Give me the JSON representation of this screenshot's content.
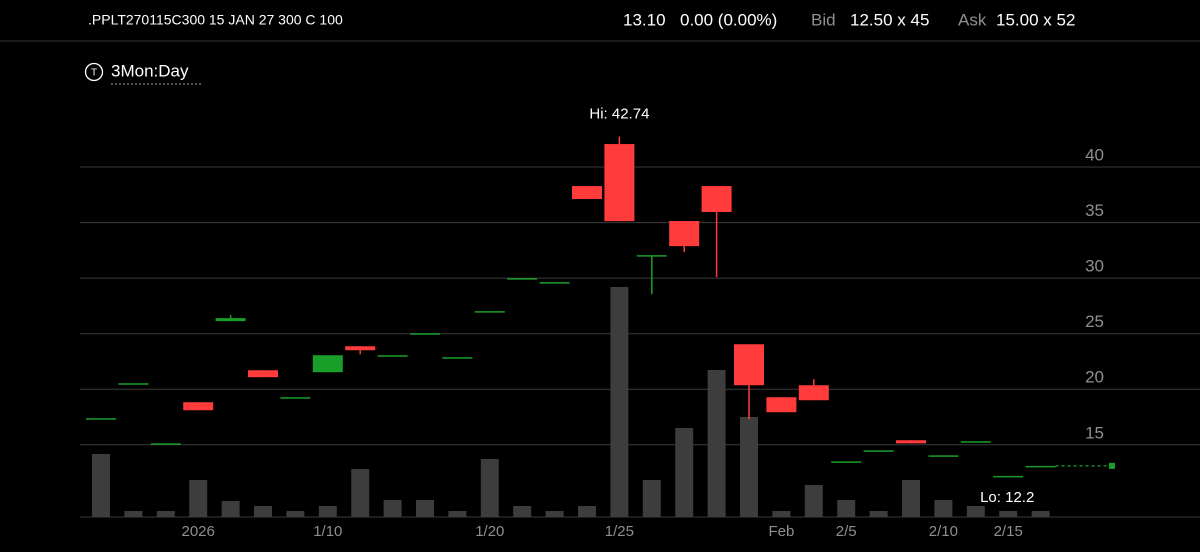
{
  "header": {
    "symbol": ".PPLT270115C300 15 JAN 27 300 C 100",
    "last": "13.10",
    "change": "0.00 (0.00%)",
    "bid_label": "Bid",
    "bid": "12.50 x 45",
    "ask_label": "Ask",
    "ask": "15.00 x 52",
    "period": "3Mon:Day",
    "period_icon": "T"
  },
  "chart_data": {
    "type": "candlestick",
    "categories": [
      null,
      null,
      null,
      "2026",
      null,
      null,
      null,
      "1/10",
      null,
      null,
      null,
      null,
      "1/20",
      null,
      null,
      null,
      "1/25",
      null,
      null,
      null,
      null,
      "Feb",
      null,
      "2/5",
      null,
      null,
      "2/10",
      null,
      "2/15",
      null
    ],
    "open": [
      17.39,
      20.54,
      15.13,
      18.83,
      26.13,
      21.71,
      19.28,
      21.53,
      23.87,
      23.06,
      25.04,
      22.88,
      27.03,
      30.0,
      29.64,
      38.29,
      42.07,
      32.07,
      35.14,
      38.29,
      24.05,
      19.28,
      20.36,
      13.51,
      14.5,
      15.41,
      14.05,
      15.32,
      12.2,
      13.1
    ],
    "high": [
      17.39,
      20.54,
      15.13,
      18.83,
      26.67,
      21.71,
      19.28,
      23.06,
      23.87,
      23.06,
      25.04,
      22.88,
      27.03,
      30.0,
      29.64,
      38.29,
      42.74,
      32.07,
      35.14,
      38.29,
      24.05,
      19.28,
      20.9,
      13.51,
      14.5,
      15.41,
      14.05,
      15.32,
      12.2,
      13.1
    ],
    "low": [
      17.39,
      20.54,
      15.13,
      18.11,
      26.13,
      21.08,
      19.28,
      21.53,
      23.15,
      23.06,
      25.04,
      22.88,
      27.03,
      30.0,
      29.64,
      37.12,
      35.13,
      28.56,
      32.34,
      30.09,
      17.3,
      17.93,
      19.01,
      13.51,
      14.5,
      15.13,
      14.05,
      15.32,
      12.2,
      13.1
    ],
    "close": [
      17.39,
      20.54,
      15.13,
      18.11,
      26.4,
      21.08,
      19.28,
      23.06,
      23.51,
      23.06,
      25.04,
      22.88,
      27.03,
      30.0,
      29.64,
      37.12,
      35.13,
      32.07,
      32.88,
      35.95,
      20.36,
      17.93,
      19.01,
      13.51,
      14.5,
      15.13,
      14.05,
      15.32,
      12.2,
      13.1
    ],
    "volume": [
      63,
      6,
      6,
      37,
      16,
      11,
      6,
      11,
      48,
      17,
      17,
      6,
      58,
      11,
      6,
      11,
      230,
      37,
      89,
      147,
      100,
      6,
      32,
      17,
      6,
      37,
      17,
      11,
      6,
      6
    ],
    "up_color": "#1a9e2a",
    "down_color": "#ff3b3b",
    "volume_color": "#3d3d3d",
    "ylim": [
      8.5,
      45
    ],
    "yticks": [
      15,
      20,
      25,
      30,
      35,
      40
    ],
    "grid": true,
    "hi_label": "Hi: 42.74",
    "lo_label": "Lo: 12.2"
  }
}
